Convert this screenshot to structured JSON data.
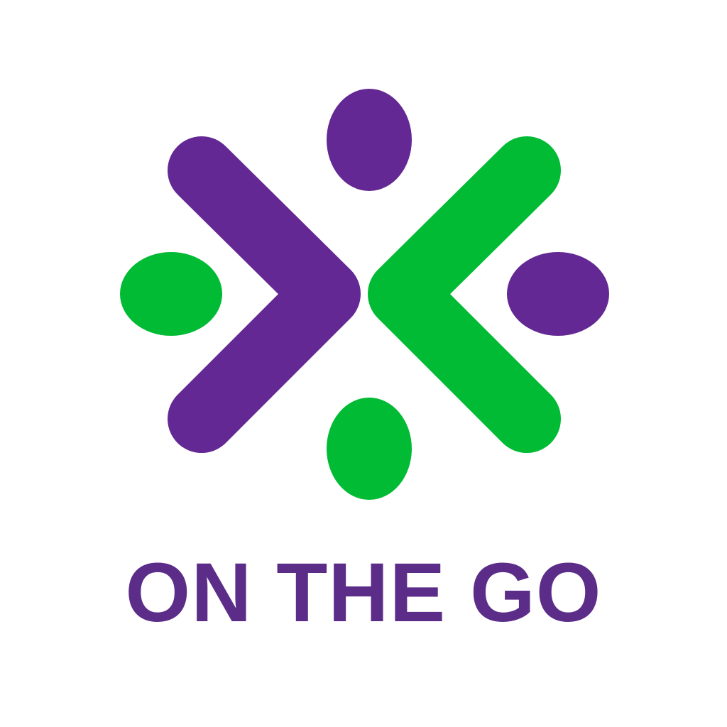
{
  "brand": {
    "name": "ON THE GO"
  },
  "colors": {
    "purple": "#632893",
    "green": "#00BB33",
    "wordmark": "#5C2D88",
    "background": "#FFFFFF"
  },
  "logo": {
    "icon": "people-circle-logo-icon"
  }
}
